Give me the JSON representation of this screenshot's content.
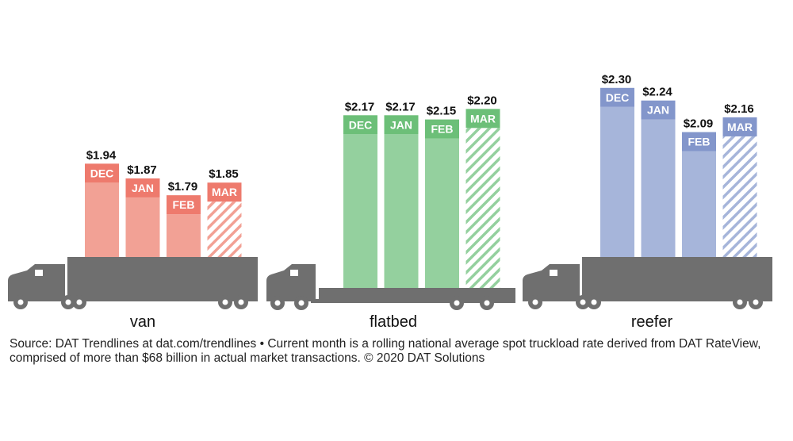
{
  "chart_data": {
    "type": "bar",
    "categories": [
      "DEC",
      "JAN",
      "FEB",
      "MAR"
    ],
    "groups": [
      {
        "name": "van",
        "values": [
          1.94,
          1.87,
          1.79,
          1.85
        ],
        "value_labels": [
          "$1.94",
          "$1.87",
          "$1.79",
          "$1.85"
        ],
        "color": "#f2a195",
        "label_color": "#ee7a6d"
      },
      {
        "name": "flatbed",
        "values": [
          2.17,
          2.17,
          2.15,
          2.2
        ],
        "value_labels": [
          "$2.17",
          "$2.17",
          "$2.15",
          "$2.20"
        ],
        "color": "#94d09e",
        "label_color": "#6cbf78"
      },
      {
        "name": "reefer",
        "values": [
          2.3,
          2.24,
          2.09,
          2.16
        ],
        "value_labels": [
          "$2.30",
          "$2.24",
          "$2.09",
          "$2.16"
        ],
        "color": "#a6b5da",
        "label_color": "#8396cb"
      }
    ],
    "current_month_hatched": "MAR",
    "truck_color": "#6f6f6f"
  },
  "source_note": "Source: DAT Trendlines at dat.com/trendlines • Current month is a rolling national average spot truckload rate derived from DAT RateView, comprised of more than $68 billion in actual market transactions. © 2020 DAT Solutions"
}
